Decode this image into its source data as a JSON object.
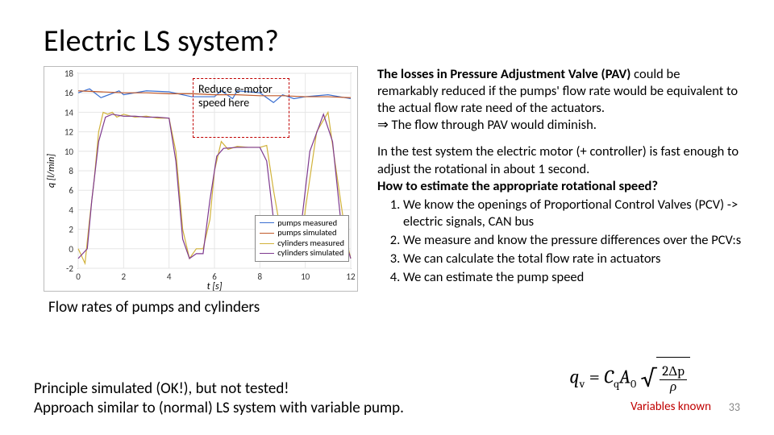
{
  "title": "Electric LS system?",
  "chart": {
    "type": "line",
    "xlim": [
      0,
      12
    ],
    "ylim": [
      -2,
      18
    ],
    "xtick_step": 2,
    "ytick_step": 2,
    "xticks": [
      0,
      2,
      4,
      6,
      8,
      10,
      12
    ],
    "yticks": [
      -2,
      0,
      2,
      4,
      6,
      8,
      10,
      12,
      14,
      16,
      18
    ],
    "xlabel": "t [s]",
    "ylabel": "q [l/min]",
    "background_color": "#ffffff",
    "grid_color": "#e6e6e6",
    "axis_color": "#444",
    "series": [
      {
        "name": "pumps measured",
        "color": "#3b6fd1",
        "width": 1.2,
        "x": [
          0,
          0.5,
          1,
          1.8,
          2,
          3,
          4,
          5,
          6,
          6.3,
          6.8,
          7,
          8,
          8.6,
          9,
          9.5,
          10,
          11,
          12
        ],
        "y": [
          16,
          16.4,
          15.5,
          16.2,
          15.8,
          16.2,
          16.1,
          15.6,
          15.6,
          16.2,
          15.4,
          16.2,
          16,
          15.0,
          15.8,
          15.4,
          15.6,
          15.8,
          15.4
        ]
      },
      {
        "name": "pumps simulated",
        "color": "#c15a2a",
        "width": 1.2,
        "x": [
          0,
          1,
          2,
          3,
          4,
          5,
          6,
          7,
          8,
          9,
          10,
          11,
          12
        ],
        "y": [
          16.2,
          16.1,
          16.0,
          16.0,
          15.9,
          15.9,
          15.8,
          15.8,
          15.7,
          15.7,
          15.6,
          15.6,
          15.5
        ]
      },
      {
        "name": "cylinders measured",
        "color": "#d1b23a",
        "width": 1.2,
        "x": [
          0,
          0.3,
          0.5,
          0.7,
          0.9,
          1.1,
          1.3,
          1.5,
          1.7,
          2,
          2.5,
          3,
          3.5,
          4,
          4.3,
          4.6,
          4.9,
          5.2,
          5.5,
          5.8,
          6,
          6.3,
          6.6,
          7,
          7.5,
          8,
          8.3,
          8.6,
          8.9,
          9.2,
          9.5,
          9.8,
          10,
          10.5,
          11,
          11.3,
          11.8,
          12
        ],
        "y": [
          0,
          -1.5,
          3,
          7,
          12,
          14,
          13.8,
          14,
          13.5,
          13.8,
          13.5,
          13.6,
          13.4,
          13.4,
          10,
          2,
          -1,
          0,
          0,
          3,
          8,
          11,
          10.2,
          10.5,
          10.4,
          10.4,
          10.6,
          6,
          2,
          -1,
          0,
          0,
          4,
          12,
          14,
          9,
          1,
          -1
        ]
      },
      {
        "name": "cylinders simulated",
        "color": "#7e3a8f",
        "width": 1.2,
        "x": [
          0,
          0.4,
          0.6,
          0.9,
          1.2,
          1.5,
          2,
          2.5,
          3,
          3.5,
          4,
          4.3,
          4.6,
          4.9,
          5.2,
          5.5,
          5.8,
          6.1,
          6.4,
          7,
          7.5,
          8,
          8.3,
          8.6,
          8.9,
          9.2,
          9.5,
          9.8,
          10.2,
          10.8,
          11.2,
          11.6,
          12
        ],
        "y": [
          -1,
          0,
          5,
          11,
          13.5,
          13.8,
          13.6,
          13.6,
          13.5,
          13.5,
          13.4,
          9,
          1,
          -1,
          -0.5,
          -0.5,
          5,
          9.5,
          10.3,
          10.4,
          10.4,
          10.4,
          9,
          3,
          -1,
          -0.5,
          -0.5,
          2,
          10,
          13.8,
          11,
          2,
          -1
        ]
      }
    ],
    "legend": {
      "position": "lower-right",
      "fontsize": 10.5
    },
    "annotation": {
      "text": "Reduce e-motor speed here",
      "box_color": "#c00000",
      "dashed": true
    }
  },
  "chart_caption": "Flow rates of pumps and cylinders",
  "text": {
    "losses_lead": "The losses in Pressure Adjustment Valve (PAV)",
    "losses_rest": " could be remarkably reduced if the pumps' flow rate would  be equivalent to the actual flow rate need of the actuators.",
    "implication": "⇒ The flow through PAV would diminish.",
    "test_system": "In the test system the electric motor (+ controller) is fast enough to adjust the rotational in about 1 second.",
    "how_est": "How to estimate the appropriate rotational speed?",
    "steps": [
      "We know the openings of Proportional Control Valves (PCV) -> electric signals, CAN bus",
      "We measure and know the pressure differences over the PCV:s",
      "We can calculate the total flow rate in actuators",
      "We can estimate the pump speed"
    ]
  },
  "bottom_line1": "Principle simulated (OK!), but not tested!",
  "bottom_line2": "Approach similar to (normal) LS system with variable pump.",
  "formula": {
    "lhs": "q",
    "lhs_sub": "v",
    "coef": "C",
    "coef_sub": "q",
    "area": "A",
    "area_sub": "0",
    "num": "2Δp",
    "den": "ρ"
  },
  "variables_known": "Variables known",
  "page_number": "33"
}
